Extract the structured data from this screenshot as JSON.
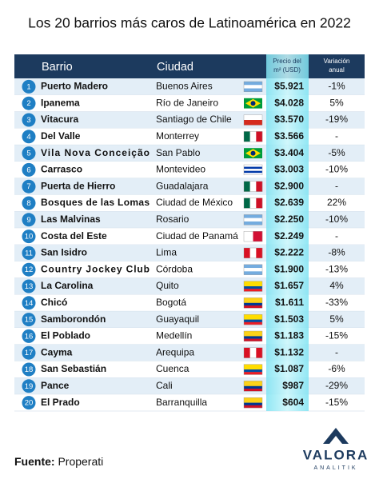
{
  "title": "Los 20 barrios más caros de Latinoamérica en 2022",
  "table": {
    "columns": [
      "Barrio",
      "Ciudad",
      [
        "Precio del",
        "m² (USD)"
      ],
      [
        "Variación",
        "anual"
      ]
    ],
    "rows": [
      [
        "1",
        "Puerto Madero",
        "Buenos Aires",
        "$5.921",
        "-1%"
      ],
      [
        "2",
        "Ipanema",
        "Río de Janeiro",
        "$4.028",
        "5%"
      ],
      [
        "3",
        "Vitacura",
        "Santiago de Chile",
        "$3.570",
        "-19%"
      ],
      [
        "4",
        "Del Valle",
        "Monterrey",
        "$3.566",
        "-"
      ],
      [
        "5",
        "Vila Nova Conceição",
        "San Pablo",
        "$3.404",
        "-5%"
      ],
      [
        "6",
        "Carrasco",
        "Montevideo",
        "$3.003",
        "-10%"
      ],
      [
        "7",
        "Puerta de Hierro",
        "Guadalajara",
        "$2.900",
        "-"
      ],
      [
        "8",
        "Bosques de las Lomas",
        "Ciudad de México",
        "$2.639",
        "22%"
      ],
      [
        "9",
        "Las Malvinas",
        "Rosario",
        "$2.250",
        "-10%"
      ],
      [
        "10",
        "Costa del Este",
        "Ciudad de Panamá",
        "$2.249",
        "-"
      ],
      [
        "11",
        "San Isidro",
        "Lima",
        "$2.222",
        "-8%"
      ],
      [
        "12",
        "Country Jockey Club",
        "Córdoba",
        "$1.900",
        "-13%"
      ],
      [
        "13",
        "La Carolina",
        "Quito",
        "$1.657",
        "4%"
      ],
      [
        "14",
        "Chicó",
        "Bogotá",
        "$1.611",
        "-33%"
      ],
      [
        "15",
        "Samborondón",
        "Guayaquil",
        "$1.503",
        "5%"
      ],
      [
        "16",
        "El Poblado",
        "Medellín",
        "$1.183",
        "-15%"
      ],
      [
        "17",
        "Cayma",
        "Arequipa",
        "$1.132",
        "-"
      ],
      [
        "18",
        "San Sebastián",
        "Cuenca",
        "$1.087",
        "-6%"
      ],
      [
        "19",
        "Pance",
        "Cali",
        "$987",
        "-29%"
      ],
      [
        "20",
        "El Prado",
        "Barranquilla",
        "$604",
        "-15%"
      ]
    ]
  },
  "footer": {
    "source_label": "Fuente:",
    "source": "Properati",
    "logo": "VALORA",
    "logo_sub": "ANALITIK"
  }
}
